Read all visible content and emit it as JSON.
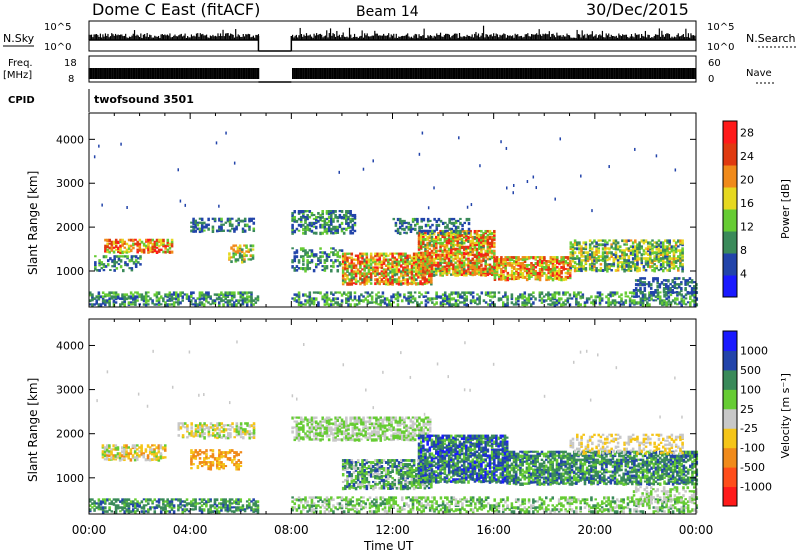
{
  "header": {
    "title": "Dome C East (fitACF)",
    "beam": "Beam 14",
    "date": "30/Dec/2015"
  },
  "strips": {
    "nsky_label": "N.Sky",
    "nsky_ticks": [
      "10^5",
      "10^0"
    ],
    "nsearch_label": "N.Search",
    "freq_label": "Freq.",
    "freq_unit": "[MHz]",
    "freq_ticks": [
      "18",
      "8"
    ],
    "nave_label": "Nave",
    "nave_ticks": [
      "60",
      "0"
    ],
    "cpid_label": "CPID",
    "cpid_value": "twofsound 3501"
  },
  "colors": {
    "power": [
      "#1a1aff",
      "#2244aa",
      "#3a8a5a",
      "#66cc33",
      "#e6d820",
      "#f08a1a",
      "#e03a10",
      "#ff1a1a"
    ],
    "velocity": [
      "#ff1a1a",
      "#ff4d1a",
      "#f08a1a",
      "#f5c518",
      "#c8c8c8",
      "#66cc33",
      "#3a8a5a",
      "#2244aa",
      "#1a1aff"
    ]
  },
  "chart_data": [
    {
      "type": "heatmap",
      "title": "Power",
      "ylabel": "Slant Range [km]",
      "xlabel": "Time UT",
      "x_ticks": [
        "00:00",
        "04:00",
        "08:00",
        "12:00",
        "16:00",
        "20:00",
        "00:00"
      ],
      "x_range_hours": [
        0,
        24
      ],
      "y_ticks": [
        1000,
        2000,
        3000,
        4000
      ],
      "ylim": [
        180,
        4600
      ],
      "colorbar": {
        "label": "Power [dB]",
        "ticks": [
          4,
          8,
          12,
          16,
          20,
          24,
          28
        ],
        "range": [
          0,
          30
        ]
      },
      "data_gap_hours": [
        6.7,
        8.0
      ],
      "regions": [
        {
          "t0": 0.0,
          "t1": 6.7,
          "r0": 220,
          "r1": 500,
          "v0": 5,
          "v1": 14,
          "density": 0.55
        },
        {
          "t0": 8.0,
          "t1": 24.0,
          "r0": 220,
          "r1": 520,
          "v0": 5,
          "v1": 15,
          "density": 0.45
        },
        {
          "t0": 0.6,
          "t1": 3.3,
          "r0": 1420,
          "r1": 1720,
          "v0": 12,
          "v1": 28,
          "density": 0.6
        },
        {
          "t0": 0.2,
          "t1": 2.0,
          "r0": 1000,
          "r1": 1350,
          "v0": 4,
          "v1": 14,
          "density": 0.35
        },
        {
          "t0": 4.0,
          "t1": 6.5,
          "r0": 1900,
          "r1": 2200,
          "v0": 4,
          "v1": 12,
          "density": 0.45
        },
        {
          "t0": 5.5,
          "t1": 6.5,
          "r0": 1200,
          "r1": 1600,
          "v0": 8,
          "v1": 22,
          "density": 0.45
        },
        {
          "t0": 8.0,
          "t1": 10.5,
          "r0": 1850,
          "r1": 2350,
          "v0": 4,
          "v1": 14,
          "density": 0.5
        },
        {
          "t0": 8.0,
          "t1": 10.0,
          "r0": 1000,
          "r1": 1500,
          "v0": 4,
          "v1": 14,
          "density": 0.35
        },
        {
          "t0": 10.0,
          "t1": 13.5,
          "r0": 700,
          "r1": 1400,
          "v0": 10,
          "v1": 28,
          "density": 0.75
        },
        {
          "t0": 13.0,
          "t1": 16.0,
          "r0": 900,
          "r1": 1900,
          "v0": 10,
          "v1": 28,
          "density": 0.75
        },
        {
          "t0": 12.0,
          "t1": 15.0,
          "r0": 1850,
          "r1": 2200,
          "v0": 4,
          "v1": 12,
          "density": 0.35
        },
        {
          "t0": 16.0,
          "t1": 19.0,
          "r0": 800,
          "r1": 1300,
          "v0": 12,
          "v1": 28,
          "density": 0.75
        },
        {
          "t0": 19.0,
          "t1": 23.5,
          "r0": 1000,
          "r1": 1700,
          "v0": 6,
          "v1": 20,
          "density": 0.6
        },
        {
          "t0": 21.5,
          "t1": 24.0,
          "r0": 500,
          "r1": 850,
          "v0": 4,
          "v1": 10,
          "density": 0.45
        }
      ]
    },
    {
      "type": "heatmap",
      "title": "Velocity",
      "ylabel": "Slant Range [km]",
      "xlabel": "Time UT",
      "x_ticks": [
        "00:00",
        "04:00",
        "08:00",
        "12:00",
        "16:00",
        "20:00",
        "00:00"
      ],
      "x_range_hours": [
        0,
        24
      ],
      "y_ticks": [
        1000,
        2000,
        3000,
        4000
      ],
      "ylim": [
        180,
        4600
      ],
      "colorbar": {
        "label": "Velocity [m s^-1]",
        "ticks": [
          1000,
          500,
          100,
          25,
          -25,
          -100,
          -500,
          -1000
        ]
      },
      "data_gap_hours": [
        6.7,
        8.0
      ],
      "regions": [
        {
          "t0": 0.0,
          "t1": 6.7,
          "r0": 220,
          "r1": 520,
          "v0": 5,
          "v1": 7,
          "density": 0.55
        },
        {
          "t0": 8.0,
          "t1": 24.0,
          "r0": 220,
          "r1": 560,
          "v0": 4,
          "v1": 6,
          "density": 0.45
        },
        {
          "t0": 0.5,
          "t1": 3.0,
          "r0": 1400,
          "r1": 1750,
          "v0": 2,
          "v1": 5,
          "density": 0.6
        },
        {
          "t0": 3.5,
          "t1": 6.5,
          "r0": 1900,
          "r1": 2250,
          "v0": 3,
          "v1": 5,
          "density": 0.55
        },
        {
          "t0": 4.0,
          "t1": 6.0,
          "r0": 1200,
          "r1": 1650,
          "v0": 2,
          "v1": 3,
          "density": 0.45
        },
        {
          "t0": 8.0,
          "t1": 13.5,
          "r0": 1850,
          "r1": 2350,
          "v0": 4,
          "v1": 5,
          "density": 0.6
        },
        {
          "t0": 10.0,
          "t1": 13.5,
          "r0": 750,
          "r1": 1400,
          "v0": 4,
          "v1": 7,
          "density": 0.7
        },
        {
          "t0": 13.0,
          "t1": 16.5,
          "r0": 900,
          "r1": 1950,
          "v0": 5,
          "v1": 8,
          "density": 0.75
        },
        {
          "t0": 16.5,
          "t1": 24.0,
          "r0": 850,
          "r1": 1600,
          "v0": 5,
          "v1": 7,
          "density": 0.7
        },
        {
          "t0": 19.0,
          "t1": 23.5,
          "r0": 1550,
          "r1": 2000,
          "v0": 3,
          "v1": 4,
          "density": 0.35
        },
        {
          "t0": 21.5,
          "t1": 24.0,
          "r0": 450,
          "r1": 800,
          "v0": 4,
          "v1": 5,
          "density": 0.45
        }
      ]
    }
  ]
}
